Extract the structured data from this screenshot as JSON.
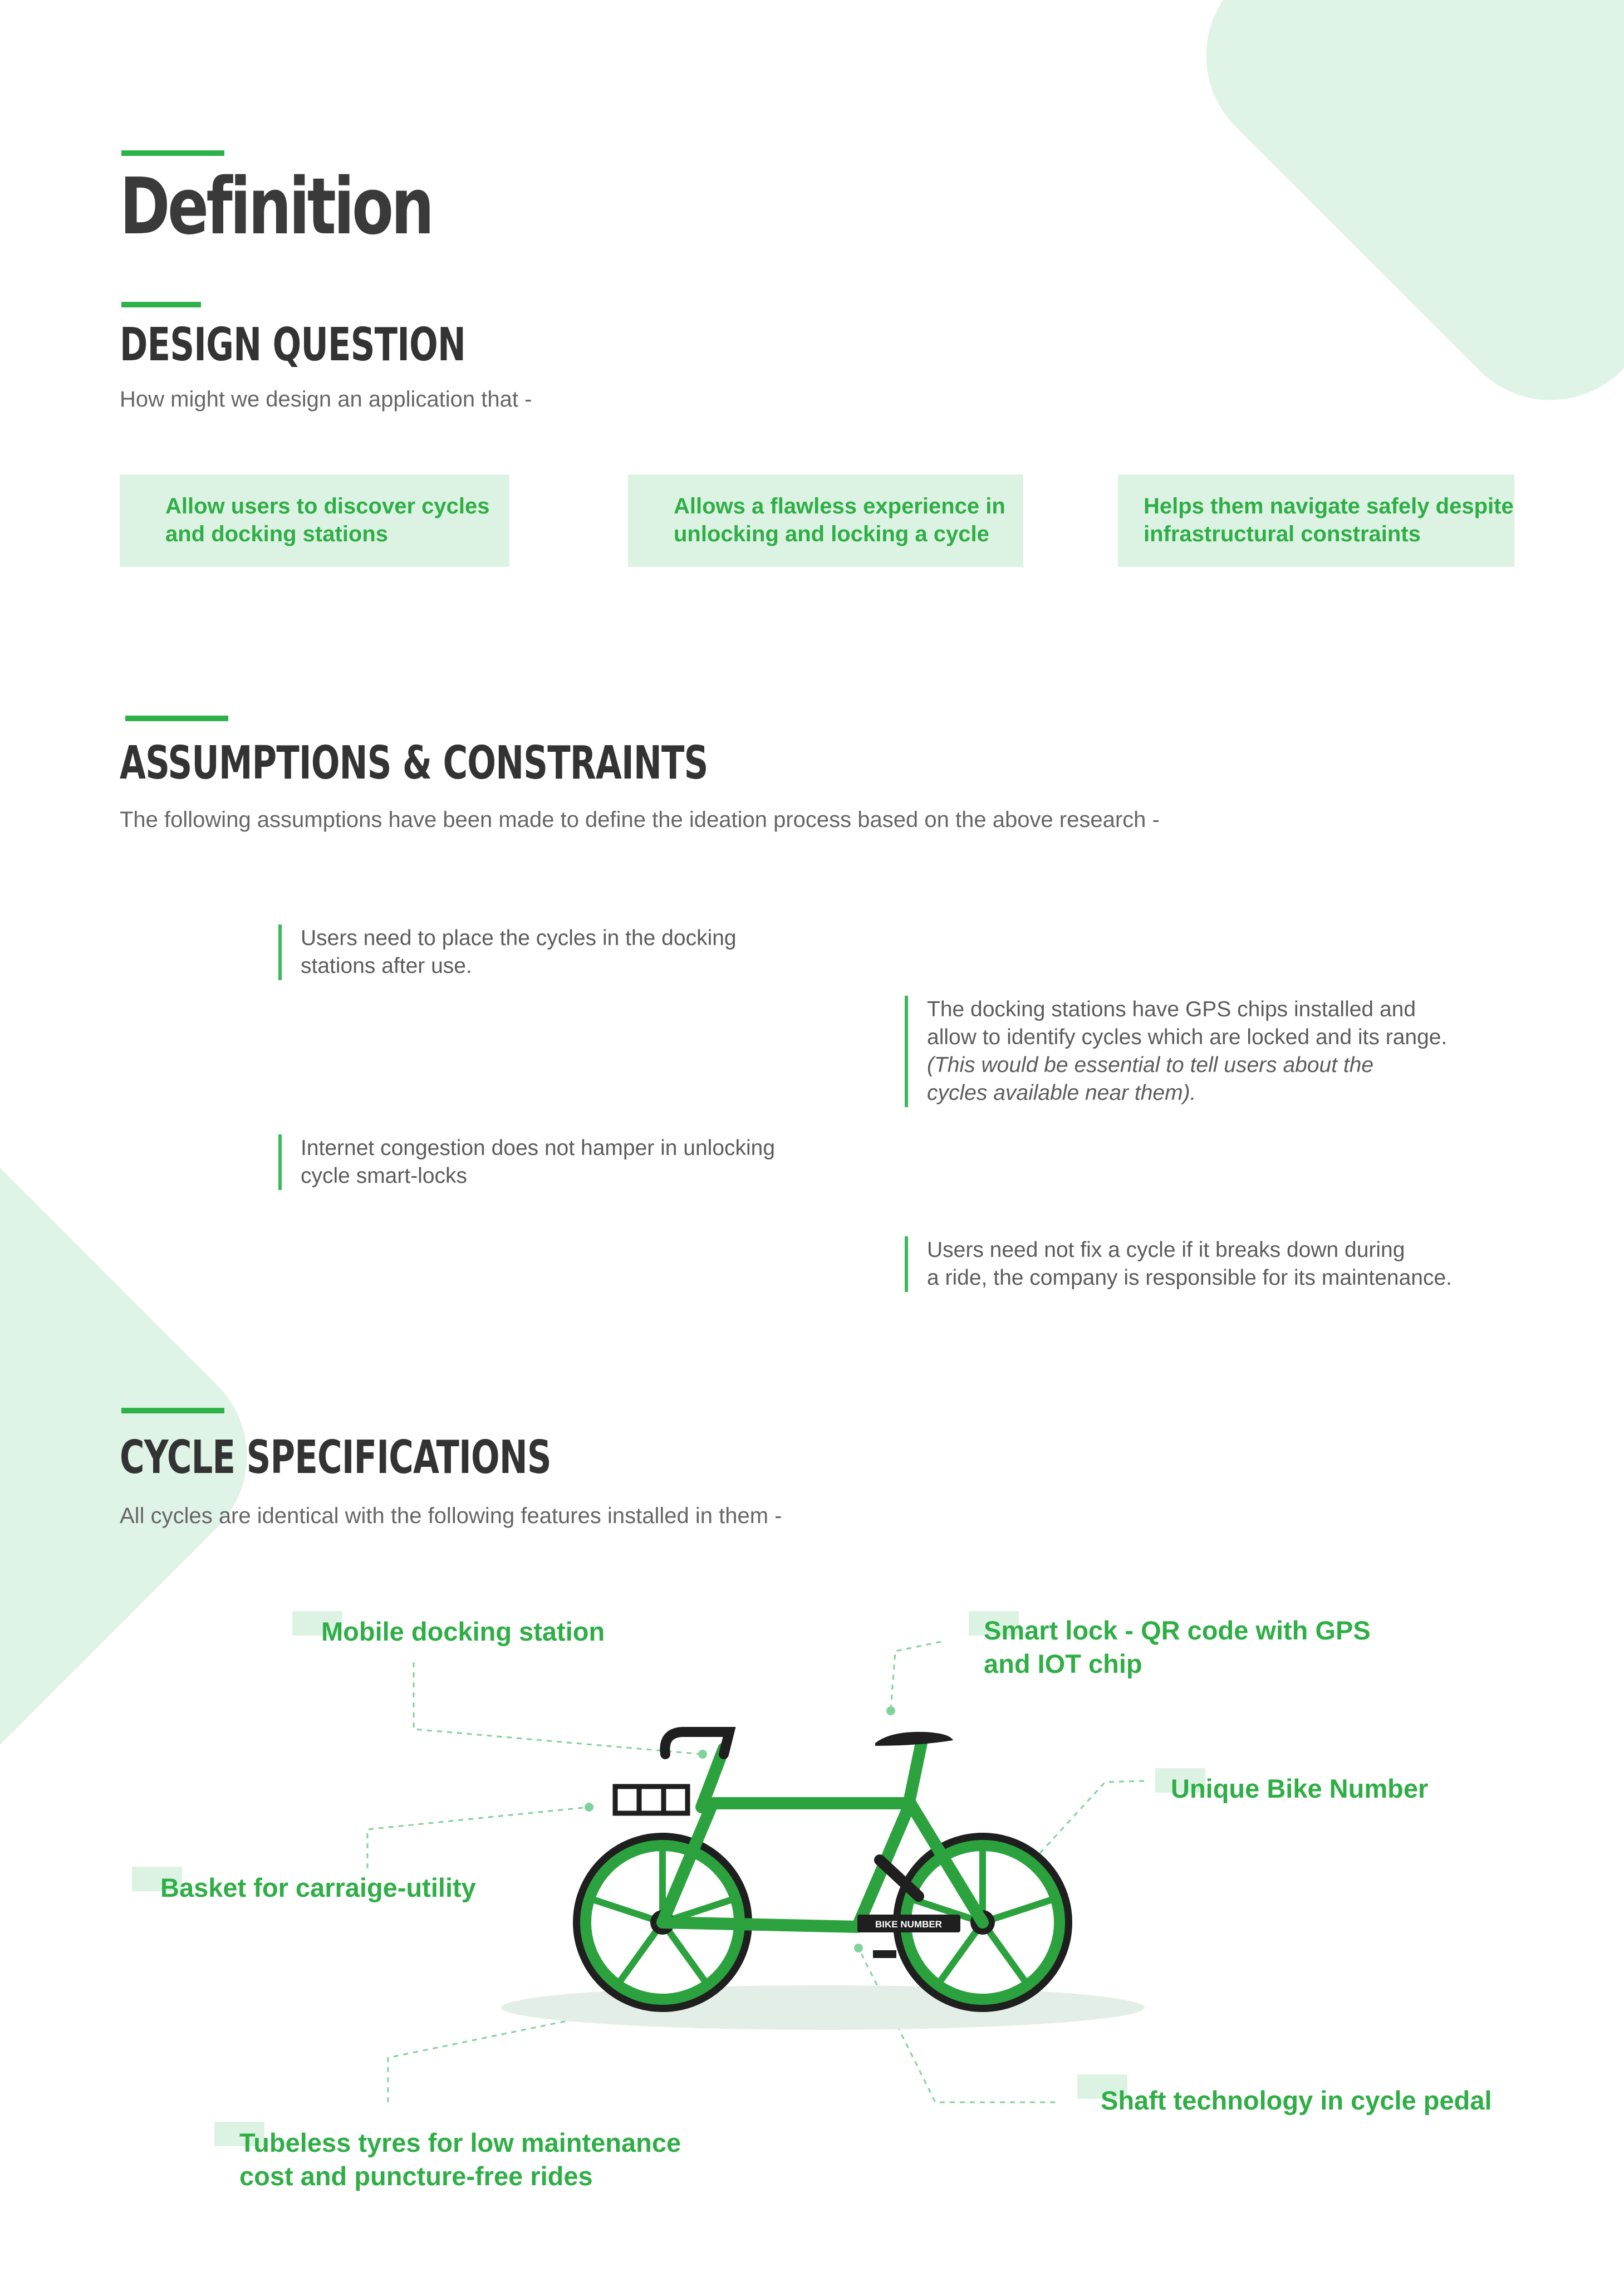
{
  "page": {
    "title": "Definition"
  },
  "design_question": {
    "heading": "DESIGN QUESTION",
    "intro": "How might we design an application that -",
    "cards": [
      {
        "line1": "Allow users to discover cycles",
        "line2": "and docking stations"
      },
      {
        "line1": "Allows a flawless experience in",
        "line2": "unlocking and locking a cycle"
      },
      {
        "line1": "Helps them navigate safely despite",
        "line2": "infrastructural constraints"
      }
    ]
  },
  "assumptions": {
    "heading": "ASSUMPTIONS & CONSTRAINTS",
    "intro": "The following assumptions have been made to define the ideation process based on the above research -",
    "items": [
      {
        "line1": "Users need to place the cycles in the docking",
        "line2": "stations after use."
      },
      {
        "line1": "The docking stations have GPS  chips installed and",
        "line2": "allow to identify cycles which are locked and its range.",
        "note1": "(This would be essential to tell users about the",
        "note2": "cycles available near them)."
      },
      {
        "line1": "Internet congestion does not hamper in unlocking",
        "line2": "cycle smart-locks"
      },
      {
        "line1": "Users need not fix a cycle if it breaks down during",
        "line2": "a ride, the company is responsible for its  maintenance."
      }
    ]
  },
  "cycle_specs": {
    "heading": "CYCLE SPECIFICATIONS",
    "intro": "All cycles are identical with the following features installed in them -",
    "bike_number_plate": "BIKE NUMBER",
    "labels": {
      "mobile_dock": "Mobile docking station",
      "smart_lock_1": "Smart lock - QR code with GPS",
      "smart_lock_2": "and IOT chip",
      "bike_number": "Unique Bike Number",
      "basket": "Basket for carraige-utility",
      "shaft": "Shaft technology in cycle pedal",
      "tyres_1": "Tubeless tyres for low maintenance",
      "tyres_2": "cost and puncture-free rides"
    }
  },
  "colors": {
    "accent": "#2db24a",
    "accent_text": "#2fae46",
    "card_bg": "#dcf3e3",
    "deco_bg": "#dff4e6",
    "bike_frame": "#2ca23f",
    "bike_dark": "#1f1f1f"
  }
}
